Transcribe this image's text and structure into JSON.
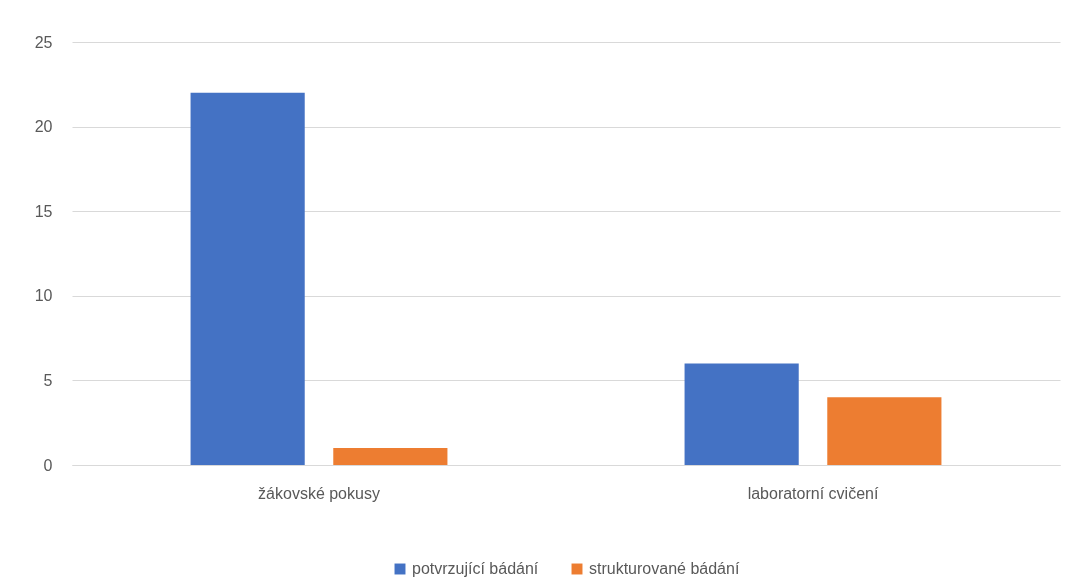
{
  "chart_data": {
    "type": "bar",
    "categories": [
      "žákovské pokusy",
      "laboratorní cvičení"
    ],
    "series": [
      {
        "name": "potvrzující bádání",
        "color": "#4472c4",
        "values": [
          22,
          6
        ]
      },
      {
        "name": "strukturované bádání",
        "color": "#ed7d31",
        "values": [
          1,
          4
        ]
      }
    ],
    "ylim": [
      0,
      25
    ],
    "yticks": [
      0,
      5,
      10,
      15,
      20,
      25
    ],
    "grid": "y",
    "legend": "bottom"
  }
}
